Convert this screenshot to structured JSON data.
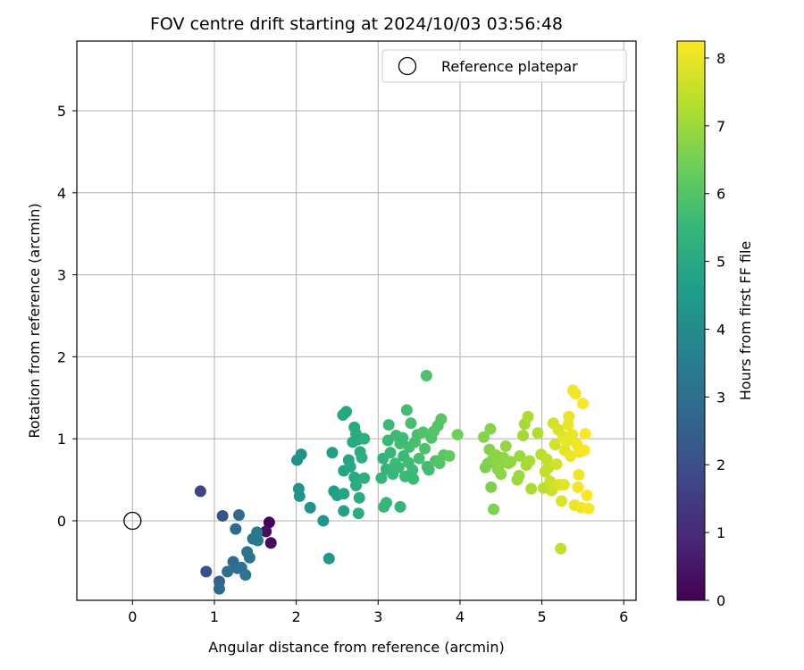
{
  "chart_data": {
    "type": "scatter",
    "title": "FOV centre drift starting at 2024/10/03 03:56:48",
    "xlabel": "Angular distance from reference (arcmin)",
    "ylabel": "Rotation from reference (arcmin)",
    "xlim": [
      -0.68,
      6.15
    ],
    "ylim": [
      -0.97,
      5.85
    ],
    "xticks": [
      "0",
      "1",
      "2",
      "3",
      "4",
      "5",
      "6"
    ],
    "yticks": [
      "0",
      "1",
      "2",
      "3",
      "4",
      "5"
    ],
    "grid": true,
    "legend": {
      "position": "top-right",
      "entries": [
        "Reference platepar"
      ]
    },
    "reference_point": {
      "name": "Reference platepar",
      "x": 0,
      "y": 0
    },
    "colorbar": {
      "label": "Hours from first FF file",
      "range": [
        0,
        8.25
      ],
      "ticks": [
        "0",
        "1",
        "2",
        "3",
        "4",
        "5",
        "6",
        "7",
        "8"
      ],
      "colormap": "viridis"
    },
    "colormap_stops": [
      "#440154",
      "#482878",
      "#3e4989",
      "#31688e",
      "#26828e",
      "#1f9e89",
      "#35b779",
      "#6ece58",
      "#b5de2b",
      "#fde725"
    ],
    "points": [
      {
        "x": 1.67,
        "y": -0.02,
        "c": 0.1
      },
      {
        "x": 1.63,
        "y": -0.13,
        "c": 0.3
      },
      {
        "x": 1.69,
        "y": -0.27,
        "c": 0.2
      },
      {
        "x": 0.83,
        "y": 0.36,
        "c": 1.7
      },
      {
        "x": 0.9,
        "y": -0.62,
        "c": 2.0
      },
      {
        "x": 1.1,
        "y": 0.06,
        "c": 2.1
      },
      {
        "x": 1.3,
        "y": 0.07,
        "c": 2.9
      },
      {
        "x": 1.26,
        "y": -0.1,
        "c": 2.8
      },
      {
        "x": 1.06,
        "y": -0.74,
        "c": 2.6
      },
      {
        "x": 1.06,
        "y": -0.83,
        "c": 2.8
      },
      {
        "x": 1.16,
        "y": -0.62,
        "c": 3.0
      },
      {
        "x": 1.23,
        "y": -0.5,
        "c": 2.9
      },
      {
        "x": 1.28,
        "y": -0.58,
        "c": 3.0
      },
      {
        "x": 1.33,
        "y": -0.57,
        "c": 3.1
      },
      {
        "x": 1.38,
        "y": -0.66,
        "c": 3.1
      },
      {
        "x": 1.4,
        "y": -0.38,
        "c": 3.2
      },
      {
        "x": 1.43,
        "y": -0.45,
        "c": 3.2
      },
      {
        "x": 1.47,
        "y": -0.22,
        "c": 3.2
      },
      {
        "x": 1.52,
        "y": -0.14,
        "c": 3.3
      },
      {
        "x": 1.53,
        "y": -0.24,
        "c": 3.3
      },
      {
        "x": 2.01,
        "y": 0.74,
        "c": 4.1
      },
      {
        "x": 2.06,
        "y": 0.81,
        "c": 4.2
      },
      {
        "x": 2.03,
        "y": 0.39,
        "c": 4.2
      },
      {
        "x": 2.04,
        "y": 0.3,
        "c": 4.3
      },
      {
        "x": 2.17,
        "y": 0.16,
        "c": 4.3
      },
      {
        "x": 2.33,
        "y": 0.0,
        "c": 4.3
      },
      {
        "x": 2.4,
        "y": -0.46,
        "c": 4.4
      },
      {
        "x": 2.44,
        "y": 0.83,
        "c": 4.6
      },
      {
        "x": 2.46,
        "y": 0.36,
        "c": 4.6
      },
      {
        "x": 2.5,
        "y": 0.31,
        "c": 4.7
      },
      {
        "x": 2.57,
        "y": 1.29,
        "c": 4.9
      },
      {
        "x": 2.61,
        "y": 1.33,
        "c": 4.9
      },
      {
        "x": 2.58,
        "y": 0.61,
        "c": 4.8
      },
      {
        "x": 2.58,
        "y": 0.33,
        "c": 4.8
      },
      {
        "x": 2.58,
        "y": 0.12,
        "c": 4.7
      },
      {
        "x": 2.64,
        "y": 0.74,
        "c": 4.8
      },
      {
        "x": 2.66,
        "y": 0.66,
        "c": 4.9
      },
      {
        "x": 2.69,
        "y": 0.96,
        "c": 5.0
      },
      {
        "x": 2.71,
        "y": 1.14,
        "c": 5.1
      },
      {
        "x": 2.73,
        "y": 1.06,
        "c": 5.1
      },
      {
        "x": 2.75,
        "y": 0.99,
        "c": 5.0
      },
      {
        "x": 2.71,
        "y": 0.53,
        "c": 5.0
      },
      {
        "x": 2.73,
        "y": 0.43,
        "c": 5.1
      },
      {
        "x": 2.76,
        "y": 0.09,
        "c": 5.1
      },
      {
        "x": 2.77,
        "y": 0.28,
        "c": 5.1
      },
      {
        "x": 2.78,
        "y": 0.84,
        "c": 5.1
      },
      {
        "x": 2.8,
        "y": 0.77,
        "c": 5.2
      },
      {
        "x": 2.83,
        "y": 1.0,
        "c": 5.2
      },
      {
        "x": 2.83,
        "y": 0.52,
        "c": 5.2
      },
      {
        "x": 3.04,
        "y": 0.52,
        "c": 5.4
      },
      {
        "x": 3.06,
        "y": 0.76,
        "c": 5.4
      },
      {
        "x": 3.07,
        "y": 0.17,
        "c": 5.5
      },
      {
        "x": 3.1,
        "y": 0.22,
        "c": 5.5
      },
      {
        "x": 3.1,
        "y": 0.63,
        "c": 5.4
      },
      {
        "x": 3.12,
        "y": 0.98,
        "c": 5.6
      },
      {
        "x": 3.13,
        "y": 1.17,
        "c": 5.6
      },
      {
        "x": 3.15,
        "y": 0.83,
        "c": 5.5
      },
      {
        "x": 3.18,
        "y": 0.57,
        "c": 5.5
      },
      {
        "x": 3.21,
        "y": 0.7,
        "c": 5.6
      },
      {
        "x": 3.22,
        "y": 1.04,
        "c": 5.6
      },
      {
        "x": 3.25,
        "y": 0.65,
        "c": 5.6
      },
      {
        "x": 3.27,
        "y": 0.94,
        "c": 5.7
      },
      {
        "x": 3.27,
        "y": 0.17,
        "c": 5.4
      },
      {
        "x": 3.3,
        "y": 1.01,
        "c": 5.6
      },
      {
        "x": 3.31,
        "y": 0.79,
        "c": 5.6
      },
      {
        "x": 3.33,
        "y": 0.54,
        "c": 5.6
      },
      {
        "x": 3.35,
        "y": 1.35,
        "c": 5.7
      },
      {
        "x": 3.37,
        "y": 0.71,
        "c": 5.7
      },
      {
        "x": 3.38,
        "y": 0.9,
        "c": 5.7
      },
      {
        "x": 3.4,
        "y": 1.19,
        "c": 5.8
      },
      {
        "x": 3.42,
        "y": 0.62,
        "c": 5.6
      },
      {
        "x": 3.43,
        "y": 0.51,
        "c": 5.6
      },
      {
        "x": 3.45,
        "y": 0.96,
        "c": 5.8
      },
      {
        "x": 3.48,
        "y": 1.05,
        "c": 5.8
      },
      {
        "x": 3.5,
        "y": 0.76,
        "c": 5.8
      },
      {
        "x": 3.55,
        "y": 1.08,
        "c": 5.9
      },
      {
        "x": 3.57,
        "y": 0.88,
        "c": 5.9
      },
      {
        "x": 3.59,
        "y": 1.77,
        "c": 5.9
      },
      {
        "x": 3.6,
        "y": 0.66,
        "c": 5.7
      },
      {
        "x": 3.62,
        "y": 0.62,
        "c": 5.7
      },
      {
        "x": 3.65,
        "y": 1.01,
        "c": 5.9
      },
      {
        "x": 3.68,
        "y": 1.09,
        "c": 6.0
      },
      {
        "x": 3.7,
        "y": 0.73,
        "c": 5.9
      },
      {
        "x": 3.73,
        "y": 1.16,
        "c": 6.0
      },
      {
        "x": 3.75,
        "y": 0.7,
        "c": 6.0
      },
      {
        "x": 3.77,
        "y": 1.24,
        "c": 6.1
      },
      {
        "x": 3.8,
        "y": 0.8,
        "c": 6.1
      },
      {
        "x": 3.87,
        "y": 0.79,
        "c": 6.2
      },
      {
        "x": 3.97,
        "y": 1.05,
        "c": 6.4
      },
      {
        "x": 4.29,
        "y": 1.02,
        "c": 6.7
      },
      {
        "x": 4.31,
        "y": 0.65,
        "c": 6.6
      },
      {
        "x": 4.34,
        "y": 0.7,
        "c": 6.6
      },
      {
        "x": 4.36,
        "y": 0.87,
        "c": 6.7
      },
      {
        "x": 4.37,
        "y": 1.12,
        "c": 6.7
      },
      {
        "x": 4.38,
        "y": 0.41,
        "c": 6.6
      },
      {
        "x": 4.4,
        "y": 0.75,
        "c": 6.7
      },
      {
        "x": 4.41,
        "y": 0.14,
        "c": 6.6
      },
      {
        "x": 4.44,
        "y": 0.8,
        "c": 6.8
      },
      {
        "x": 4.46,
        "y": 0.63,
        "c": 6.7
      },
      {
        "x": 4.48,
        "y": 0.68,
        "c": 6.8
      },
      {
        "x": 4.5,
        "y": 0.57,
        "c": 6.8
      },
      {
        "x": 4.53,
        "y": 0.77,
        "c": 6.8
      },
      {
        "x": 4.56,
        "y": 0.91,
        "c": 6.9
      },
      {
        "x": 4.59,
        "y": 0.7,
        "c": 6.9
      },
      {
        "x": 4.62,
        "y": 0.72,
        "c": 6.9
      },
      {
        "x": 4.7,
        "y": 0.5,
        "c": 7.0
      },
      {
        "x": 4.72,
        "y": 0.55,
        "c": 7.0
      },
      {
        "x": 4.73,
        "y": 0.79,
        "c": 7.0
      },
      {
        "x": 4.77,
        "y": 1.04,
        "c": 7.1
      },
      {
        "x": 4.79,
        "y": 1.18,
        "c": 7.1
      },
      {
        "x": 4.81,
        "y": 0.68,
        "c": 7.1
      },
      {
        "x": 4.83,
        "y": 1.27,
        "c": 7.2
      },
      {
        "x": 4.85,
        "y": 0.73,
        "c": 7.2
      },
      {
        "x": 4.87,
        "y": 0.39,
        "c": 7.2
      },
      {
        "x": 4.95,
        "y": 1.07,
        "c": 7.3
      },
      {
        "x": 4.99,
        "y": 0.81,
        "c": 7.4
      },
      {
        "x": 5.02,
        "y": 0.4,
        "c": 7.4
      },
      {
        "x": 5.04,
        "y": 0.6,
        "c": 7.5
      },
      {
        "x": 5.06,
        "y": 0.75,
        "c": 7.5
      },
      {
        "x": 5.08,
        "y": 0.65,
        "c": 7.5
      },
      {
        "x": 5.1,
        "y": 0.48,
        "c": 7.6
      },
      {
        "x": 5.12,
        "y": 0.37,
        "c": 7.6
      },
      {
        "x": 5.14,
        "y": 1.19,
        "c": 7.7
      },
      {
        "x": 5.16,
        "y": 0.93,
        "c": 7.7
      },
      {
        "x": 5.18,
        "y": 0.69,
        "c": 7.7
      },
      {
        "x": 5.2,
        "y": 1.11,
        "c": 7.8
      },
      {
        "x": 5.21,
        "y": 0.44,
        "c": 7.8
      },
      {
        "x": 5.23,
        "y": -0.34,
        "c": 7.5
      },
      {
        "x": 5.24,
        "y": 0.24,
        "c": 7.8
      },
      {
        "x": 5.26,
        "y": 1.03,
        "c": 7.9
      },
      {
        "x": 5.27,
        "y": 0.44,
        "c": 7.9
      },
      {
        "x": 5.28,
        "y": 0.86,
        "c": 7.9
      },
      {
        "x": 5.3,
        "y": 0.97,
        "c": 8.0
      },
      {
        "x": 5.32,
        "y": 1.17,
        "c": 8.0
      },
      {
        "x": 5.33,
        "y": 1.27,
        "c": 8.0
      },
      {
        "x": 5.35,
        "y": 0.79,
        "c": 8.0
      },
      {
        "x": 5.37,
        "y": 1.05,
        "c": 8.0
      },
      {
        "x": 5.38,
        "y": 1.59,
        "c": 8.1
      },
      {
        "x": 5.4,
        "y": 0.19,
        "c": 8.0
      },
      {
        "x": 5.41,
        "y": 1.55,
        "c": 8.1
      },
      {
        "x": 5.43,
        "y": 0.93,
        "c": 8.1
      },
      {
        "x": 5.44,
        "y": 0.41,
        "c": 8.1
      },
      {
        "x": 5.45,
        "y": 0.56,
        "c": 8.1
      },
      {
        "x": 5.46,
        "y": 0.84,
        "c": 8.1
      },
      {
        "x": 5.48,
        "y": 0.16,
        "c": 8.1
      },
      {
        "x": 5.5,
        "y": 1.43,
        "c": 8.2
      },
      {
        "x": 5.52,
        "y": 0.86,
        "c": 8.2
      },
      {
        "x": 5.53,
        "y": 1.06,
        "c": 8.2
      },
      {
        "x": 5.55,
        "y": 0.31,
        "c": 8.2
      },
      {
        "x": 5.57,
        "y": 0.15,
        "c": 8.2
      }
    ]
  }
}
